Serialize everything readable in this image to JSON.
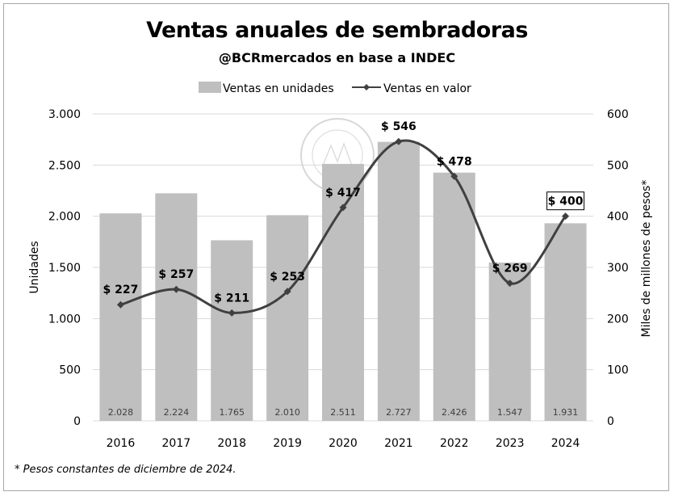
{
  "chart_data": {
    "type": "bar+line",
    "title": "Ventas anuales de sembradoras",
    "subtitle": "@BCRmercados en base a INDEC",
    "footnote": "* Pesos constantes de diciembre de 2024.",
    "categories": [
      "2016",
      "2017",
      "2018",
      "2019",
      "2020",
      "2021",
      "2022",
      "2023",
      "2024"
    ],
    "series": [
      {
        "name": "Ventas en unidades",
        "kind": "bar",
        "axis": "left",
        "color": "#bfbfbf",
        "values": [
          2028,
          2224,
          1765,
          2010,
          2511,
          2727,
          2426,
          1547,
          1931
        ],
        "labels": [
          "2.028",
          "2.224",
          "1.765",
          "2.010",
          "2.511",
          "2.727",
          "2.426",
          "1.547",
          "1.931"
        ]
      },
      {
        "name": "Ventas en valor",
        "kind": "line",
        "axis": "right",
        "color": "#404040",
        "values": [
          227,
          257,
          211,
          253,
          417,
          546,
          478,
          269,
          400
        ],
        "labels": [
          "$ 227",
          "$ 257",
          "$ 211",
          "$ 253",
          "$ 417",
          "$ 546",
          "$ 478",
          "$ 269",
          "$ 400"
        ]
      }
    ],
    "ylabel": "Unidades",
    "ylabel_right": "Miles de millones de pesos*",
    "ylim": [
      0,
      3000
    ],
    "ylim_right": [
      0,
      600
    ],
    "yticks": [
      0,
      500,
      1000,
      1500,
      2000,
      2500,
      3000
    ],
    "ytick_labels": [
      "0",
      "500",
      "1.000",
      "1.500",
      "2.000",
      "2.500",
      "3.000"
    ],
    "yticks_right": [
      0,
      100,
      200,
      300,
      400,
      500,
      600
    ],
    "ytick_labels_right": [
      "0",
      "100",
      "200",
      "300",
      "400",
      "500",
      "600"
    ],
    "grid": true,
    "legend": "top",
    "highlighted_label": "$ 400",
    "watermark": "BOLSA DE COMERCIO DE ROSARIO"
  }
}
